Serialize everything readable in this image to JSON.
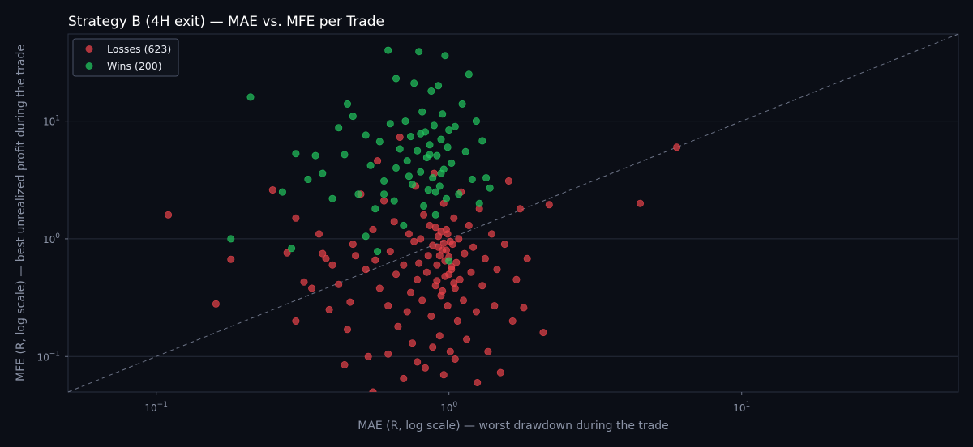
{
  "chart_data": {
    "type": "scatter",
    "title": "Strategy B (4H exit) — MAE vs. MFE per Trade",
    "xlabel": "MAE (R, log scale) — worst drawdown during the trade",
    "ylabel": "MFE (R, log scale) — best unrealized profit during the trade",
    "x_scale": "log",
    "y_scale": "log",
    "xlim": [
      0.05,
      55
    ],
    "ylim": [
      0.05,
      55
    ],
    "x_ticks": [
      {
        "value": 0.1,
        "base": "10",
        "exp": "−1"
      },
      {
        "value": 1,
        "base": "10",
        "exp": "0"
      },
      {
        "value": 10,
        "base": "10",
        "exp": "1"
      }
    ],
    "y_ticks": [
      {
        "value": 0.1,
        "base": "10",
        "exp": "−1"
      },
      {
        "value": 1,
        "base": "10",
        "exp": "0"
      },
      {
        "value": 10,
        "base": "10",
        "exp": "1"
      }
    ],
    "grid": "horizontal",
    "diagonal": "y = x (dashed)",
    "legend_position": "top-left",
    "series": [
      {
        "name": "Losses (623)",
        "color": "#e8434a",
        "points": [
          [
            0.11,
            1.6
          ],
          [
            0.16,
            0.28
          ],
          [
            0.18,
            0.67
          ],
          [
            0.25,
            2.6
          ],
          [
            0.28,
            0.76
          ],
          [
            0.3,
            1.5
          ],
          [
            0.3,
            0.2
          ],
          [
            0.32,
            0.43
          ],
          [
            0.34,
            0.38
          ],
          [
            0.36,
            1.1
          ],
          [
            0.37,
            0.75
          ],
          [
            0.38,
            0.68
          ],
          [
            0.39,
            0.25
          ],
          [
            0.4,
            0.6
          ],
          [
            0.42,
            0.41
          ],
          [
            0.44,
            0.085
          ],
          [
            0.45,
            0.17
          ],
          [
            0.46,
            0.29
          ],
          [
            0.47,
            0.9
          ],
          [
            0.48,
            0.72
          ],
          [
            0.5,
            2.4
          ],
          [
            0.52,
            0.55
          ],
          [
            0.53,
            0.1
          ],
          [
            0.55,
            1.2
          ],
          [
            0.56,
            0.66
          ],
          [
            0.57,
            4.6
          ],
          [
            0.58,
            0.38
          ],
          [
            0.6,
            2.1
          ],
          [
            0.62,
            0.27
          ],
          [
            0.63,
            0.78
          ],
          [
            0.65,
            1.4
          ],
          [
            0.66,
            0.5
          ],
          [
            0.67,
            0.18
          ],
          [
            0.68,
            7.3
          ],
          [
            0.7,
            0.6
          ],
          [
            0.72,
            0.24
          ],
          [
            0.73,
            1.1
          ],
          [
            0.74,
            0.35
          ],
          [
            0.75,
            0.13
          ],
          [
            0.76,
            0.95
          ],
          [
            0.77,
            2.8
          ],
          [
            0.78,
            0.45
          ],
          [
            0.79,
            0.62
          ],
          [
            0.8,
            1.0
          ],
          [
            0.81,
            0.3
          ],
          [
            0.82,
            1.6
          ],
          [
            0.83,
            0.08
          ],
          [
            0.84,
            0.52
          ],
          [
            0.85,
            0.72
          ],
          [
            0.86,
            1.3
          ],
          [
            0.87,
            0.22
          ],
          [
            0.88,
            0.88
          ],
          [
            0.89,
            3.6
          ],
          [
            0.9,
            0.4
          ],
          [
            0.91,
            0.6
          ],
          [
            0.92,
            1.05
          ],
          [
            0.93,
            0.15
          ],
          [
            0.94,
            0.33
          ],
          [
            0.95,
            0.8
          ],
          [
            0.96,
            2.0
          ],
          [
            0.97,
            0.48
          ],
          [
            0.98,
            1.2
          ],
          [
            0.99,
            0.27
          ],
          [
            1.0,
            0.7
          ],
          [
            1.01,
            0.11
          ],
          [
            1.02,
            0.55
          ],
          [
            1.03,
            0.9
          ],
          [
            1.04,
            1.5
          ],
          [
            1.05,
            0.38
          ],
          [
            1.06,
            0.63
          ],
          [
            1.07,
            0.2
          ],
          [
            1.08,
            1.0
          ],
          [
            1.09,
            0.45
          ],
          [
            1.1,
            2.5
          ],
          [
            1.12,
            0.3
          ],
          [
            1.13,
            0.75
          ],
          [
            1.15,
            0.14
          ],
          [
            1.17,
            1.3
          ],
          [
            1.19,
            0.52
          ],
          [
            1.21,
            0.85
          ],
          [
            1.24,
            0.24
          ],
          [
            1.27,
            1.8
          ],
          [
            1.3,
            0.4
          ],
          [
            1.33,
            0.68
          ],
          [
            1.36,
            0.11
          ],
          [
            1.4,
            1.1
          ],
          [
            1.43,
            0.27
          ],
          [
            1.46,
            0.55
          ],
          [
            1.5,
            0.073
          ],
          [
            1.55,
            0.9
          ],
          [
            1.6,
            3.1
          ],
          [
            1.65,
            0.2
          ],
          [
            1.7,
            0.45
          ],
          [
            1.75,
            1.8
          ],
          [
            1.8,
            0.26
          ],
          [
            1.85,
            0.68
          ],
          [
            2.1,
            0.16
          ],
          [
            2.2,
            1.95
          ],
          [
            4.5,
            2.0
          ],
          [
            6.0,
            6.0
          ],
          [
            0.96,
            0.07
          ],
          [
            0.7,
            0.065
          ],
          [
            0.55,
            0.05
          ],
          [
            1.05,
            0.095
          ],
          [
            0.88,
            0.12
          ],
          [
            0.78,
            0.09
          ],
          [
            1.25,
            0.06
          ],
          [
            0.62,
            0.105
          ],
          [
            0.92,
            0.85
          ],
          [
            0.94,
            1.15
          ],
          [
            0.97,
            0.65
          ],
          [
            1.01,
            0.95
          ],
          [
            0.99,
            1.1
          ],
          [
            0.93,
            0.72
          ],
          [
            0.98,
            0.8
          ],
          [
            1.02,
            0.58
          ],
          [
            0.96,
            0.92
          ],
          [
            0.9,
            1.25
          ],
          [
            1.0,
            0.5
          ],
          [
            0.95,
            0.36
          ],
          [
            0.91,
            0.44
          ],
          [
            1.04,
            0.42
          ]
        ]
      },
      {
        "name": "Wins (200)",
        "color": "#22c55e",
        "points": [
          [
            0.18,
            1.0
          ],
          [
            0.21,
            16
          ],
          [
            0.27,
            2.5
          ],
          [
            0.29,
            0.83
          ],
          [
            0.3,
            5.3
          ],
          [
            0.33,
            3.2
          ],
          [
            0.35,
            5.1
          ],
          [
            0.37,
            3.6
          ],
          [
            0.4,
            2.2
          ],
          [
            0.42,
            8.8
          ],
          [
            0.44,
            5.2
          ],
          [
            0.45,
            14
          ],
          [
            0.47,
            11
          ],
          [
            0.49,
            2.4
          ],
          [
            0.52,
            7.6
          ],
          [
            0.54,
            4.2
          ],
          [
            0.56,
            1.8
          ],
          [
            0.58,
            6.7
          ],
          [
            0.6,
            3.1
          ],
          [
            0.62,
            40
          ],
          [
            0.63,
            9.5
          ],
          [
            0.65,
            2.1
          ],
          [
            0.66,
            23
          ],
          [
            0.68,
            5.8
          ],
          [
            0.7,
            1.3
          ],
          [
            0.71,
            10
          ],
          [
            0.72,
            4.6
          ],
          [
            0.74,
            7.4
          ],
          [
            0.75,
            2.9
          ],
          [
            0.76,
            21
          ],
          [
            0.78,
            5.6
          ],
          [
            0.79,
            39
          ],
          [
            0.8,
            3.7
          ],
          [
            0.81,
            12
          ],
          [
            0.82,
            1.9
          ],
          [
            0.83,
            8.1
          ],
          [
            0.84,
            4.9
          ],
          [
            0.85,
            2.6
          ],
          [
            0.86,
            6.3
          ],
          [
            0.87,
            18
          ],
          [
            0.88,
            3.3
          ],
          [
            0.89,
            9.2
          ],
          [
            0.9,
            1.6
          ],
          [
            0.91,
            5.1
          ],
          [
            0.92,
            20
          ],
          [
            0.93,
            2.8
          ],
          [
            0.94,
            7.0
          ],
          [
            0.95,
            11.5
          ],
          [
            0.96,
            3.9
          ],
          [
            0.97,
            36
          ],
          [
            0.98,
            2.2
          ],
          [
            0.99,
            6.0
          ],
          [
            1.0,
            0.65
          ],
          [
            1.02,
            4.4
          ],
          [
            1.05,
            9.0
          ],
          [
            1.08,
            2.4
          ],
          [
            1.11,
            14
          ],
          [
            1.14,
            5.5
          ],
          [
            1.17,
            25
          ],
          [
            1.2,
            3.2
          ],
          [
            1.24,
            10
          ],
          [
            1.27,
            2.0
          ],
          [
            1.3,
            6.8
          ],
          [
            1.34,
            3.3
          ],
          [
            1.38,
            2.7
          ],
          [
            0.52,
            1.05
          ],
          [
            0.57,
            0.78
          ],
          [
            0.6,
            2.4
          ],
          [
            0.66,
            4.0
          ],
          [
            0.73,
            3.4
          ],
          [
            0.8,
            7.8
          ],
          [
            0.86,
            5.2
          ],
          [
            0.9,
            2.5
          ],
          [
            0.94,
            3.6
          ],
          [
            1.0,
            8.4
          ]
        ]
      }
    ]
  }
}
